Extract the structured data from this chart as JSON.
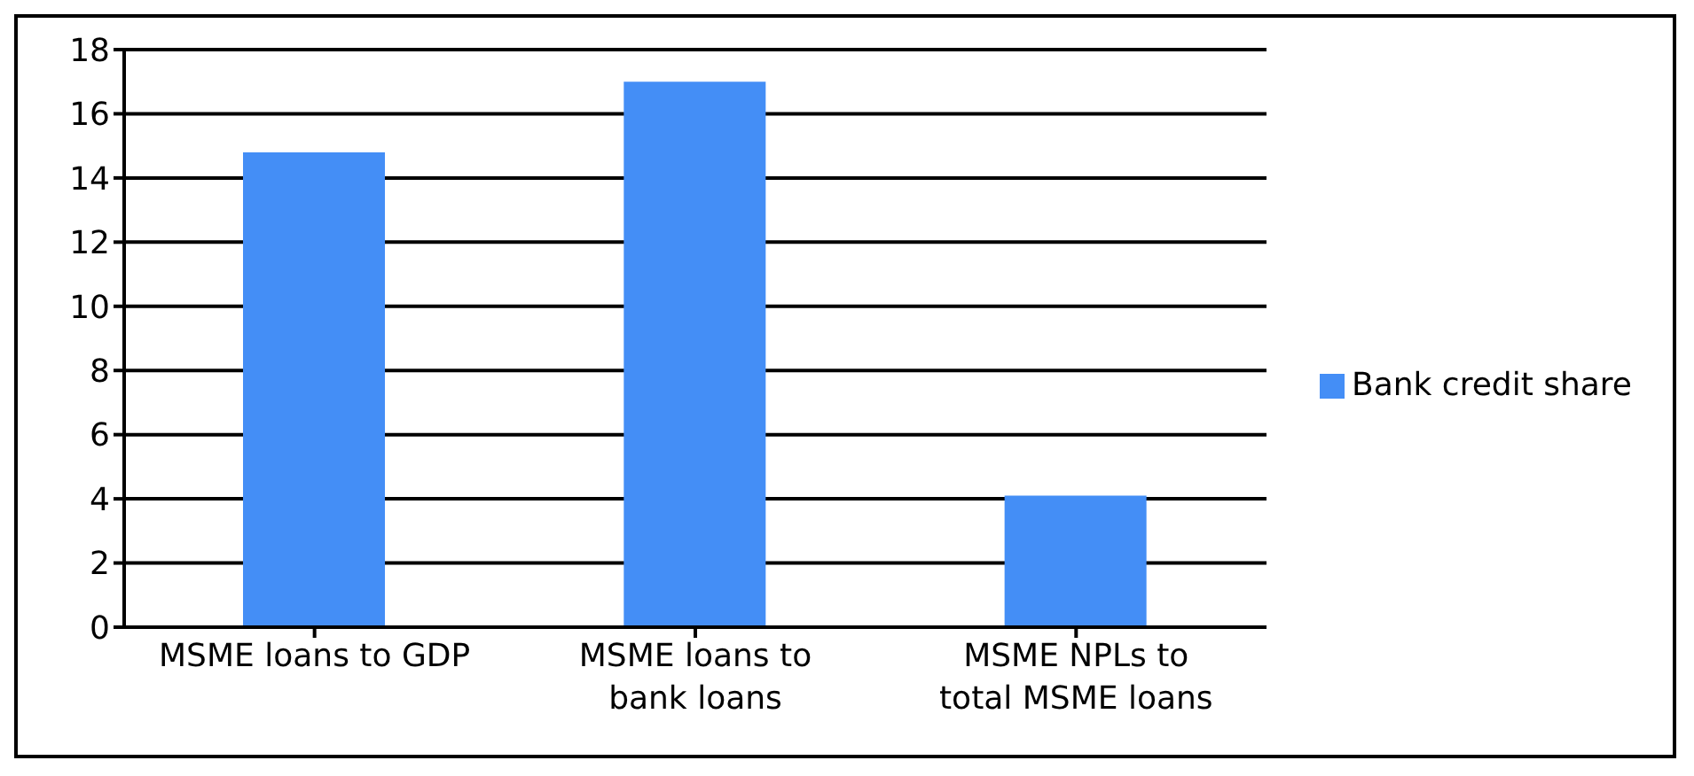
{
  "chart_data": {
    "type": "bar",
    "categories": [
      "MSME loans to GDP",
      "MSME loans to bank loans",
      "MSME NPLs to total MSME loans"
    ],
    "series": [
      {
        "name": "Bank credit share",
        "color": "#448ef6",
        "values": [
          14.8,
          17.0,
          4.1
        ]
      }
    ],
    "ylim": [
      0,
      18
    ],
    "yticks": [
      0,
      2,
      4,
      6,
      8,
      10,
      12,
      14,
      16,
      18
    ],
    "grid": "y",
    "legend": "right"
  }
}
